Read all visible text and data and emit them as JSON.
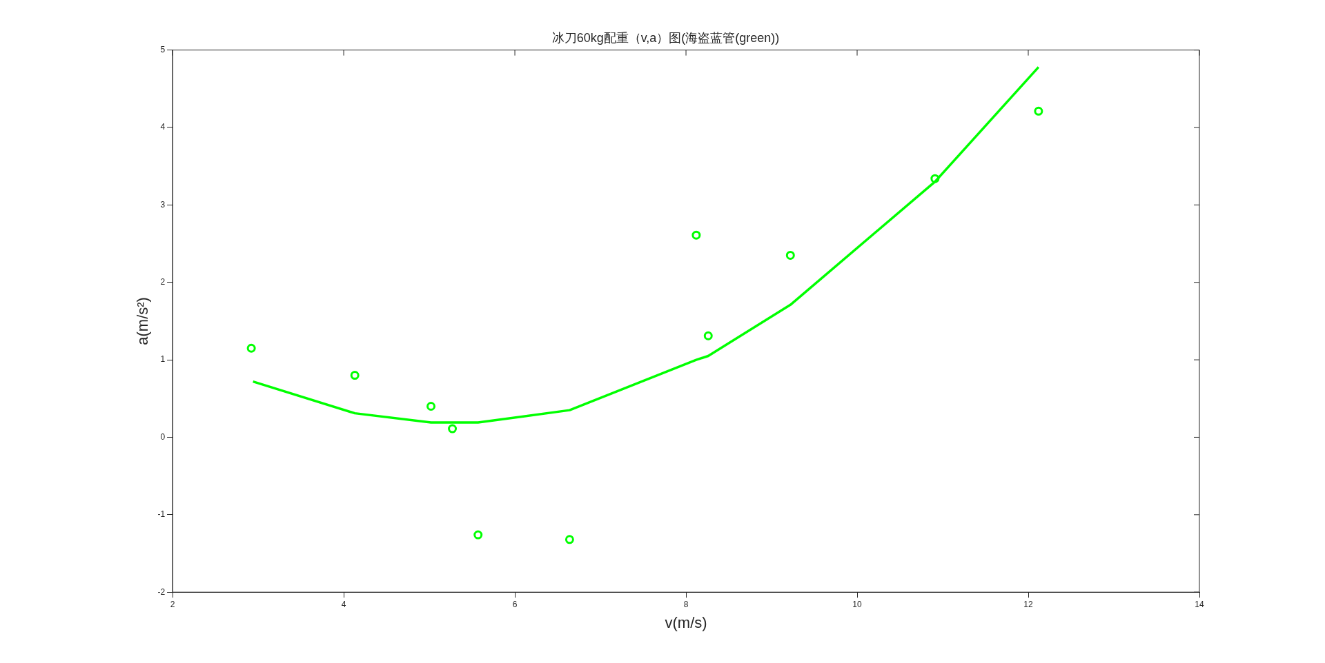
{
  "chart_data": {
    "type": "scatter",
    "title": "冰刀60kg配重（v,a）图(海盗蓝管(green))",
    "xlabel": "v(m/s)",
    "ylabel": "a(m/s²)",
    "xlim": [
      2,
      14
    ],
    "xticks": [
      2,
      4,
      6,
      8,
      10,
      12,
      14
    ],
    "ylim": [
      -2,
      5
    ],
    "yticks": [
      -2,
      -1,
      0,
      1,
      2,
      3,
      4,
      5
    ],
    "grid": false,
    "legend": false,
    "series": [
      {
        "color": "#00ff00",
        "marker": "circle",
        "x": [
          2.92,
          4.13,
          5.02,
          5.27,
          5.57,
          6.64,
          8.12,
          8.26,
          9.22,
          10.91,
          12.12
        ],
        "values": [
          1.15,
          0.8,
          0.4,
          0.11,
          -1.26,
          -1.32,
          2.61,
          1.31,
          2.35,
          3.34,
          4.21
        ]
      },
      {
        "type": "line",
        "color": "#00ff00",
        "marker": "none",
        "line_style": "solid",
        "x": [
          2.94,
          4.13,
          5.02,
          5.57,
          6.64,
          8.12,
          8.26,
          9.22,
          10.91,
          12.12
        ],
        "values": [
          0.72,
          0.31,
          0.19,
          0.19,
          0.35,
          1.0,
          1.05,
          1.71,
          3.3,
          4.78
        ]
      }
    ]
  }
}
